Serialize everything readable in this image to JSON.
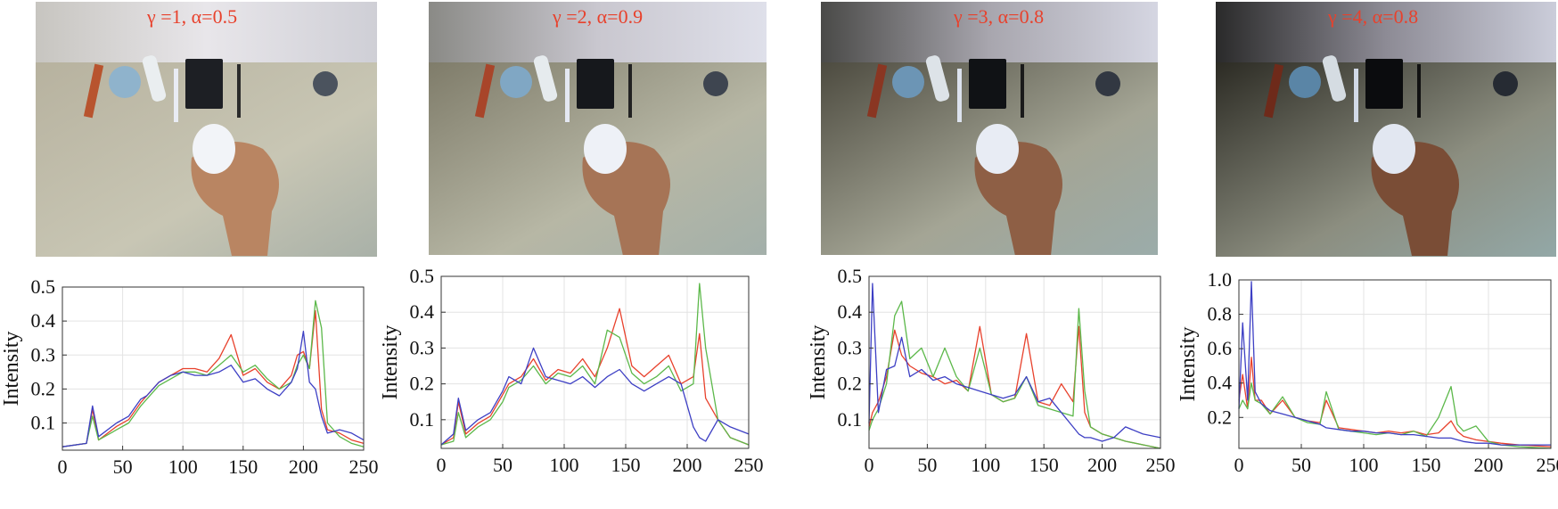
{
  "panels": [
    {
      "label": "γ =1, α=0.5"
    },
    {
      "label": "γ =2, α=0.9"
    },
    {
      "label": "γ =3, α=0.8"
    },
    {
      "label": "γ =4, α=0.8"
    }
  ],
  "colors": {
    "red": "#e8412c",
    "green": "#5cb84a",
    "blue": "#3d3fc4",
    "label": "#e8412c"
  },
  "chart_data": [
    {
      "type": "line",
      "ylabel": "Intensity",
      "xlim": [
        0,
        250
      ],
      "ylim": [
        0.02,
        0.5
      ],
      "xticks": [
        0,
        50,
        100,
        150,
        200,
        250
      ],
      "yticks": [
        0.1,
        0.2,
        0.3,
        0.4,
        0.5
      ],
      "ytick_labels": [
        "0.1",
        "0.2",
        "0.3",
        "0.4",
        "0.5"
      ],
      "grid": true,
      "x": [
        0,
        20,
        25,
        30,
        45,
        55,
        65,
        70,
        80,
        90,
        100,
        110,
        120,
        130,
        140,
        150,
        160,
        170,
        180,
        190,
        195,
        200,
        205,
        210,
        215,
        220,
        230,
        240,
        250
      ],
      "series": [
        {
          "color": "red",
          "values": [
            0.03,
            0.04,
            0.14,
            0.05,
            0.09,
            0.11,
            0.16,
            0.18,
            0.22,
            0.24,
            0.26,
            0.26,
            0.25,
            0.29,
            0.36,
            0.24,
            0.26,
            0.22,
            0.2,
            0.24,
            0.3,
            0.31,
            0.26,
            0.43,
            0.14,
            0.08,
            0.07,
            0.05,
            0.04
          ]
        },
        {
          "color": "green",
          "values": [
            0.03,
            0.04,
            0.12,
            0.05,
            0.08,
            0.1,
            0.15,
            0.17,
            0.21,
            0.23,
            0.25,
            0.25,
            0.24,
            0.27,
            0.3,
            0.25,
            0.27,
            0.23,
            0.2,
            0.22,
            0.27,
            0.3,
            0.26,
            0.46,
            0.38,
            0.1,
            0.06,
            0.04,
            0.03
          ]
        },
        {
          "color": "blue",
          "values": [
            0.03,
            0.04,
            0.15,
            0.06,
            0.1,
            0.12,
            0.17,
            0.18,
            0.22,
            0.24,
            0.25,
            0.24,
            0.24,
            0.25,
            0.27,
            0.22,
            0.23,
            0.2,
            0.18,
            0.22,
            0.26,
            0.37,
            0.22,
            0.2,
            0.12,
            0.07,
            0.08,
            0.07,
            0.05
          ]
        }
      ]
    },
    {
      "type": "line",
      "ylabel": "Intensity",
      "xlim": [
        0,
        250
      ],
      "ylim": [
        0.02,
        0.5
      ],
      "xticks": [
        0,
        50,
        100,
        150,
        200,
        250
      ],
      "yticks": [
        0.1,
        0.2,
        0.3,
        0.4,
        0.5
      ],
      "ytick_labels": [
        "0.1",
        "0.2",
        "0.3",
        "0.4",
        "0.5"
      ],
      "grid": true,
      "x": [
        0,
        10,
        14,
        20,
        30,
        40,
        50,
        55,
        65,
        75,
        85,
        95,
        105,
        115,
        125,
        135,
        145,
        155,
        165,
        175,
        185,
        195,
        205,
        210,
        215,
        225,
        235,
        250
      ],
      "series": [
        {
          "color": "red",
          "values": [
            0.03,
            0.05,
            0.15,
            0.06,
            0.09,
            0.11,
            0.17,
            0.2,
            0.22,
            0.27,
            0.21,
            0.24,
            0.23,
            0.27,
            0.22,
            0.3,
            0.41,
            0.25,
            0.22,
            0.25,
            0.28,
            0.2,
            0.22,
            0.34,
            0.16,
            0.1,
            0.05,
            0.03
          ]
        },
        {
          "color": "green",
          "values": [
            0.03,
            0.04,
            0.12,
            0.05,
            0.08,
            0.1,
            0.15,
            0.19,
            0.21,
            0.25,
            0.2,
            0.23,
            0.22,
            0.25,
            0.2,
            0.35,
            0.33,
            0.23,
            0.2,
            0.22,
            0.25,
            0.18,
            0.2,
            0.48,
            0.3,
            0.1,
            0.05,
            0.03
          ]
        },
        {
          "color": "blue",
          "values": [
            0.03,
            0.06,
            0.16,
            0.07,
            0.1,
            0.12,
            0.18,
            0.22,
            0.2,
            0.3,
            0.22,
            0.21,
            0.2,
            0.22,
            0.19,
            0.22,
            0.24,
            0.2,
            0.18,
            0.2,
            0.22,
            0.2,
            0.08,
            0.05,
            0.04,
            0.1,
            0.08,
            0.06
          ]
        }
      ]
    },
    {
      "type": "line",
      "ylabel": "Intensity",
      "xlim": [
        0,
        250
      ],
      "ylim": [
        0.02,
        0.5
      ],
      "xticks": [
        0,
        50,
        100,
        150,
        200,
        250
      ],
      "yticks": [
        0.1,
        0.2,
        0.3,
        0.4,
        0.5
      ],
      "ytick_labels": [
        "0.1",
        "0.2",
        "0.3",
        "0.4",
        "0.5"
      ],
      "grid": true,
      "x": [
        0,
        3,
        8,
        15,
        22,
        28,
        35,
        45,
        55,
        65,
        75,
        85,
        95,
        105,
        115,
        125,
        135,
        145,
        155,
        165,
        175,
        180,
        185,
        190,
        200,
        210,
        220,
        235,
        250
      ],
      "series": [
        {
          "color": "red",
          "values": [
            0.08,
            0.12,
            0.15,
            0.22,
            0.35,
            0.28,
            0.25,
            0.23,
            0.22,
            0.2,
            0.21,
            0.18,
            0.36,
            0.17,
            0.15,
            0.16,
            0.34,
            0.15,
            0.14,
            0.2,
            0.15,
            0.36,
            0.12,
            0.08,
            0.06,
            0.05,
            0.04,
            0.03,
            0.02
          ]
        },
        {
          "color": "green",
          "values": [
            0.07,
            0.1,
            0.13,
            0.2,
            0.39,
            0.43,
            0.27,
            0.3,
            0.22,
            0.3,
            0.22,
            0.18,
            0.3,
            0.17,
            0.15,
            0.16,
            0.22,
            0.14,
            0.13,
            0.12,
            0.11,
            0.41,
            0.18,
            0.08,
            0.06,
            0.05,
            0.04,
            0.03,
            0.02
          ]
        },
        {
          "color": "blue",
          "values": [
            0.09,
            0.48,
            0.12,
            0.24,
            0.25,
            0.33,
            0.22,
            0.24,
            0.21,
            0.22,
            0.2,
            0.19,
            0.18,
            0.17,
            0.16,
            0.17,
            0.22,
            0.15,
            0.16,
            0.12,
            0.08,
            0.06,
            0.05,
            0.05,
            0.04,
            0.05,
            0.08,
            0.06,
            0.05
          ]
        }
      ]
    },
    {
      "type": "line",
      "ylabel": "Intensity",
      "xlim": [
        0,
        250
      ],
      "ylim": [
        0.02,
        1.0
      ],
      "xticks": [
        0,
        50,
        100,
        150,
        200,
        250
      ],
      "yticks": [
        0.2,
        0.4,
        0.6,
        0.8,
        1.0
      ],
      "ytick_labels": [
        "0.2",
        "0.4",
        "0.6",
        "0.8",
        "1.0"
      ],
      "grid": true,
      "x": [
        0,
        3,
        7,
        10,
        13,
        18,
        25,
        35,
        45,
        55,
        65,
        70,
        80,
        90,
        100,
        110,
        120,
        130,
        140,
        150,
        160,
        170,
        175,
        180,
        190,
        200,
        210,
        225,
        250
      ],
      "series": [
        {
          "color": "red",
          "values": [
            0.3,
            0.45,
            0.25,
            0.55,
            0.3,
            0.3,
            0.22,
            0.3,
            0.2,
            0.18,
            0.17,
            0.3,
            0.14,
            0.13,
            0.12,
            0.11,
            0.12,
            0.11,
            0.12,
            0.1,
            0.11,
            0.18,
            0.12,
            0.09,
            0.07,
            0.06,
            0.05,
            0.04,
            0.03
          ]
        },
        {
          "color": "green",
          "values": [
            0.25,
            0.3,
            0.25,
            0.4,
            0.3,
            0.28,
            0.22,
            0.32,
            0.2,
            0.17,
            0.16,
            0.35,
            0.13,
            0.12,
            0.11,
            0.1,
            0.11,
            0.1,
            0.12,
            0.09,
            0.2,
            0.38,
            0.16,
            0.12,
            0.15,
            0.06,
            0.04,
            0.03,
            0.02
          ]
        },
        {
          "color": "blue",
          "values": [
            0.25,
            0.75,
            0.3,
            0.99,
            0.35,
            0.28,
            0.24,
            0.22,
            0.2,
            0.18,
            0.16,
            0.14,
            0.13,
            0.12,
            0.12,
            0.11,
            0.11,
            0.1,
            0.1,
            0.09,
            0.08,
            0.08,
            0.07,
            0.06,
            0.05,
            0.05,
            0.04,
            0.04,
            0.04
          ]
        }
      ]
    }
  ]
}
